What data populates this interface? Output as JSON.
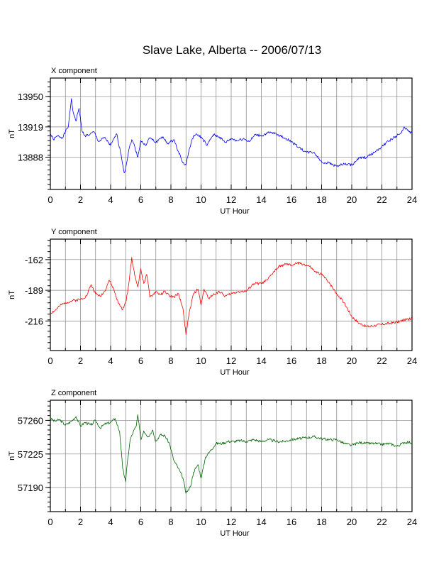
{
  "title": "Slave Lake, Alberta -- 2006/07/13",
  "colors": {
    "x": "#0000ff",
    "y": "#ff0000",
    "z": "#006400",
    "grid": "#808080"
  },
  "chart_data": [
    {
      "type": "line",
      "panel_title": "X component",
      "xlabel": "UT Hour",
      "ylabel": "nT",
      "xlim": [
        0,
        24
      ],
      "ylim": [
        13855,
        13969
      ],
      "xticks": [
        0,
        2,
        4,
        6,
        8,
        10,
        12,
        14,
        16,
        18,
        20,
        22,
        24
      ],
      "yticks": [
        13888,
        13919,
        13950
      ],
      "series": [
        {
          "color_key": "x",
          "x": [
            0,
            0.2,
            0.5,
            0.8,
            1.0,
            1.2,
            1.4,
            1.5,
            1.7,
            1.9,
            2.1,
            2.3,
            2.6,
            2.9,
            3.2,
            3.6,
            4.0,
            4.4,
            4.7,
            4.9,
            5.0,
            5.2,
            5.4,
            5.6,
            5.8,
            6.0,
            6.3,
            6.6,
            7.0,
            7.4,
            7.8,
            8.2,
            8.5,
            8.8,
            9.0,
            9.2,
            9.5,
            9.8,
            10.1,
            10.4,
            10.8,
            11.2,
            11.6,
            12.0,
            12.4,
            12.8,
            13.2,
            13.6,
            14.0,
            14.5,
            15.0,
            15.5,
            16.0,
            16.5,
            17.0,
            17.5,
            18.0,
            18.5,
            19.0,
            19.5,
            20.0,
            20.5,
            21.0,
            21.5,
            22.0,
            22.5,
            23.0,
            23.3,
            23.5,
            23.8,
            24.0
          ],
          "y": [
            13912,
            13906,
            13910,
            13908,
            13914,
            13920,
            13948,
            13935,
            13925,
            13938,
            13915,
            13910,
            13911,
            13914,
            13904,
            13908,
            13900,
            13912,
            13890,
            13872,
            13877,
            13895,
            13906,
            13899,
            13888,
            13905,
            13900,
            13908,
            13903,
            13909,
            13902,
            13906,
            13894,
            13882,
            13880,
            13895,
            13910,
            13911,
            13907,
            13900,
            13911,
            13909,
            13903,
            13907,
            13905,
            13907,
            13904,
            13911,
            13910,
            13913,
            13912,
            13908,
            13904,
            13898,
            13893,
            13893,
            13883,
            13882,
            13879,
            13881,
            13880,
            13887,
            13888,
            13893,
            13899,
            13905,
            13910,
            13913,
            13919,
            13914,
            13913
          ]
        }
      ]
    },
    {
      "type": "line",
      "panel_title": "Y component",
      "xlabel": "UT Hour",
      "ylabel": "nT",
      "xlim": [
        0,
        24
      ],
      "ylim": [
        -242,
        -144
      ],
      "xticks": [
        0,
        2,
        4,
        6,
        8,
        10,
        12,
        14,
        16,
        18,
        20,
        22,
        24
      ],
      "yticks": [
        -216,
        -189,
        -162
      ],
      "series": [
        {
          "color_key": "y",
          "x": [
            0,
            0.3,
            0.6,
            1.0,
            1.5,
            2.0,
            2.4,
            2.7,
            3.0,
            3.3,
            3.6,
            3.9,
            4.2,
            4.5,
            4.8,
            5.0,
            5.2,
            5.4,
            5.6,
            5.8,
            6.0,
            6.2,
            6.4,
            6.6,
            6.8,
            7.0,
            7.3,
            7.6,
            7.9,
            8.2,
            8.5,
            8.8,
            9.0,
            9.2,
            9.5,
            9.8,
            10.0,
            10.2,
            10.5,
            10.8,
            11.2,
            11.6,
            12.0,
            12.5,
            13.0,
            13.5,
            14.0,
            14.4,
            14.8,
            15.2,
            15.6,
            16.0,
            16.4,
            16.8,
            17.2,
            17.6,
            18.0,
            18.5,
            19.0,
            19.5,
            20.0,
            20.5,
            21.0,
            21.5,
            22.0,
            22.5,
            23.0,
            23.5,
            24.0
          ],
          "y": [
            -209,
            -207,
            -203,
            -200,
            -198,
            -197,
            -194,
            -184,
            -192,
            -194,
            -190,
            -180,
            -188,
            -200,
            -206,
            -200,
            -184,
            -160,
            -176,
            -186,
            -170,
            -183,
            -175,
            -195,
            -193,
            -190,
            -193,
            -190,
            -194,
            -195,
            -192,
            -205,
            -228,
            -210,
            -192,
            -188,
            -202,
            -188,
            -196,
            -193,
            -190,
            -194,
            -192,
            -190,
            -190,
            -183,
            -183,
            -180,
            -173,
            -168,
            -166,
            -167,
            -165,
            -166,
            -168,
            -173,
            -175,
            -182,
            -192,
            -200,
            -212,
            -218,
            -221,
            -220,
            -219,
            -218,
            -217,
            -215,
            -214
          ]
        }
      ]
    },
    {
      "type": "line",
      "panel_title": "Z component",
      "xlabel": "UT Hour",
      "ylabel": "nT",
      "xlim": [
        0,
        24
      ],
      "ylim": [
        57165,
        57281
      ],
      "xticks": [
        0,
        2,
        4,
        6,
        8,
        10,
        12,
        14,
        16,
        18,
        20,
        22,
        24
      ],
      "yticks": [
        57190,
        57225,
        57260
      ],
      "series": [
        {
          "color_key": "z",
          "x": [
            0,
            0.3,
            0.6,
            1.0,
            1.4,
            1.7,
            2.0,
            2.3,
            2.7,
            3.0,
            3.3,
            3.6,
            4.0,
            4.3,
            4.6,
            4.8,
            5.0,
            5.1,
            5.3,
            5.5,
            5.7,
            5.8,
            6.0,
            6.2,
            6.5,
            6.8,
            7.0,
            7.3,
            7.6,
            7.9,
            8.2,
            8.5,
            8.8,
            9.0,
            9.1,
            9.3,
            9.5,
            9.8,
            10.0,
            10.3,
            10.6,
            11.0,
            11.4,
            11.8,
            12.2,
            12.6,
            13.0,
            13.5,
            14.0,
            14.5,
            15.0,
            15.5,
            16.0,
            16.5,
            17.0,
            17.5,
            18.0,
            18.5,
            19.0,
            19.5,
            20.0,
            20.5,
            21.0,
            21.5,
            22.0,
            22.5,
            23.0,
            23.5,
            24.0
          ],
          "y": [
            57262,
            57259,
            57261,
            57255,
            57259,
            57264,
            57254,
            57258,
            57255,
            57260,
            57252,
            57256,
            57258,
            57262,
            57248,
            57210,
            57196,
            57215,
            57240,
            57248,
            57254,
            57266,
            57240,
            57249,
            57243,
            57250,
            57238,
            57245,
            57244,
            57236,
            57218,
            57210,
            57200,
            57184,
            57186,
            57191,
            57206,
            57214,
            57200,
            57222,
            57228,
            57236,
            57236,
            57238,
            57238,
            57239,
            57238,
            57240,
            57238,
            57240,
            57238,
            57238,
            57240,
            57241,
            57242,
            57243,
            57241,
            57240,
            57240,
            57236,
            57234,
            57237,
            57236,
            57236,
            57235,
            57236,
            57233,
            57237,
            57237
          ]
        }
      ]
    }
  ]
}
